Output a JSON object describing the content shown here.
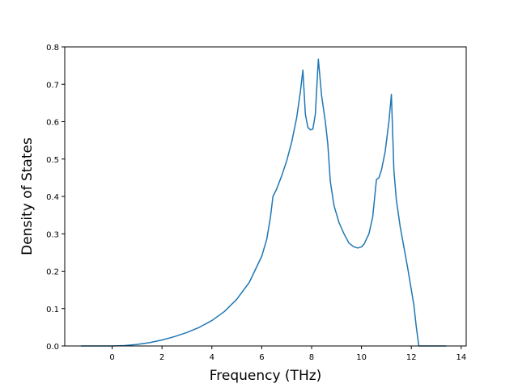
{
  "chart_data": {
    "type": "line",
    "title": "",
    "xlabel": "Frequency (THz)",
    "ylabel": "Density of States",
    "xlim": [
      -1.9,
      14.2
    ],
    "ylim": [
      0.0,
      0.8
    ],
    "xticks": [
      0,
      2,
      4,
      6,
      8,
      10,
      12,
      14
    ],
    "xtick_labels": [
      "0",
      "2",
      "4",
      "6",
      "8",
      "10",
      "12",
      "14"
    ],
    "yticks": [
      0.0,
      0.1,
      0.2,
      0.3,
      0.4,
      0.5,
      0.6,
      0.7,
      0.8
    ],
    "ytick_labels": [
      "0.0",
      "0.1",
      "0.2",
      "0.3",
      "0.4",
      "0.5",
      "0.6",
      "0.7",
      "0.8"
    ],
    "grid": false,
    "legend": "none",
    "series": [
      {
        "color": "#1f77b4",
        "x": [
          -1.25,
          0.0,
          0.5,
          1.0,
          1.5,
          2.0,
          2.5,
          3.0,
          3.5,
          4.0,
          4.5,
          5.0,
          5.5,
          6.0,
          6.2,
          6.35,
          6.45,
          6.6,
          6.8,
          7.0,
          7.2,
          7.4,
          7.55,
          7.65,
          7.75,
          7.85,
          7.95,
          8.05,
          8.15,
          8.27,
          8.4,
          8.55,
          8.65,
          8.75,
          8.9,
          9.1,
          9.3,
          9.5,
          9.7,
          9.85,
          10.0,
          10.1,
          10.3,
          10.45,
          10.6,
          10.7,
          10.8,
          10.95,
          11.1,
          11.2,
          11.3,
          11.4,
          11.55,
          11.7,
          11.85,
          12.0,
          12.1,
          12.2,
          12.3,
          12.5,
          13.4
        ],
        "values": [
          0.0,
          0.0,
          0.001,
          0.004,
          0.009,
          0.016,
          0.025,
          0.036,
          0.05,
          0.068,
          0.092,
          0.125,
          0.17,
          0.24,
          0.285,
          0.345,
          0.4,
          0.42,
          0.455,
          0.495,
          0.545,
          0.61,
          0.68,
          0.738,
          0.62,
          0.585,
          0.578,
          0.58,
          0.62,
          0.767,
          0.67,
          0.6,
          0.54,
          0.44,
          0.375,
          0.33,
          0.3,
          0.275,
          0.265,
          0.262,
          0.265,
          0.272,
          0.3,
          0.345,
          0.445,
          0.45,
          0.47,
          0.52,
          0.6,
          0.673,
          0.47,
          0.39,
          0.32,
          0.265,
          0.21,
          0.15,
          0.11,
          0.05,
          0.0,
          0.0,
          0.0
        ]
      }
    ]
  }
}
